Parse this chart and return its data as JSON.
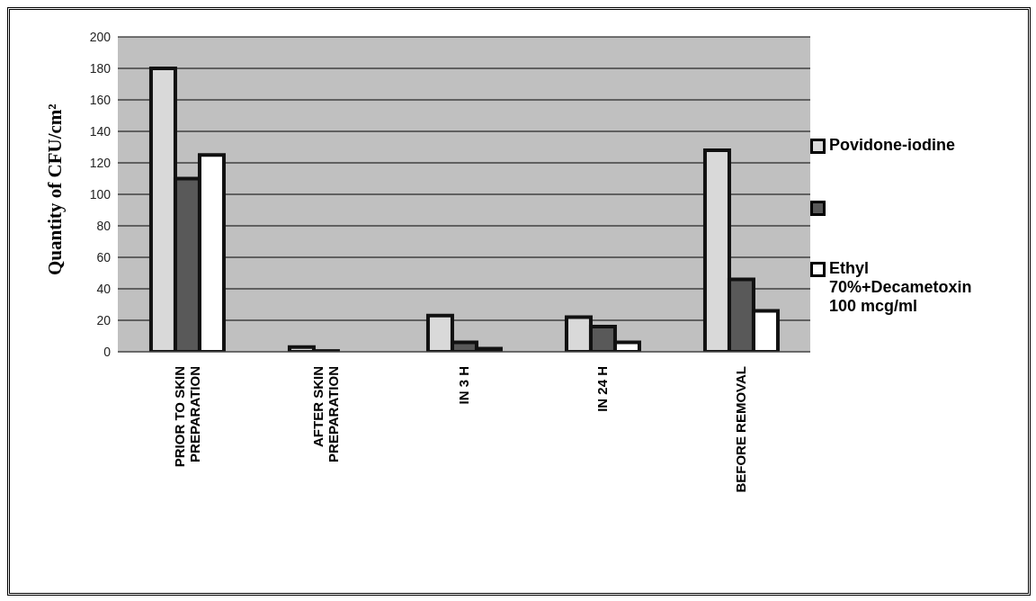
{
  "chart_data": {
    "type": "bar",
    "ylabel": "Quantity of CFU/cm²",
    "categories": [
      "PRIOR TO SKIN PREPARATION",
      "AFTER SKIN PREPARATION",
      "IN 3 H",
      "IN 24 H",
      "BEFORE REMOVAL"
    ],
    "series": [
      {
        "name": "Povidone-iodine",
        "color": "#d9d9d9",
        "values": [
          180,
          3,
          23,
          22,
          128
        ]
      },
      {
        "color": "#595959",
        "values": [
          110,
          0.5,
          6,
          16,
          46
        ]
      },
      {
        "name": "Ethyl 70%+Decametoxin 100 mcg/ml",
        "color": "#ffffff",
        "values": [
          125,
          null,
          2,
          6,
          26
        ]
      }
    ],
    "ylim": [
      0,
      200
    ],
    "yticks": [
      0,
      20,
      40,
      60,
      80,
      100,
      120,
      140,
      160,
      180,
      200
    ],
    "grid": "y",
    "legend": "right"
  }
}
